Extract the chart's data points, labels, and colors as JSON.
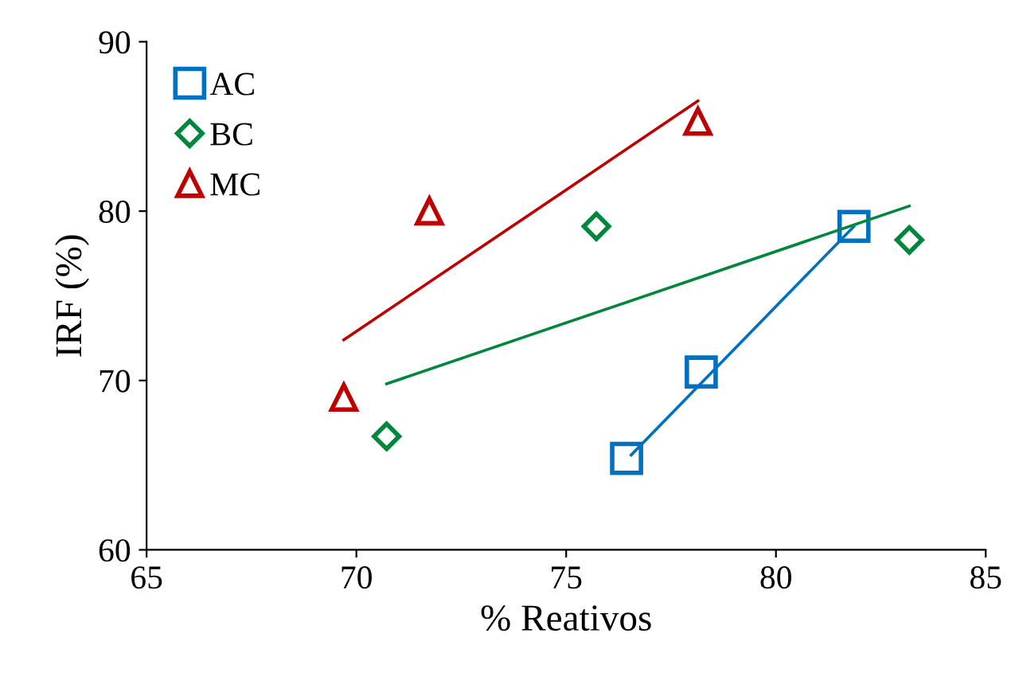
{
  "chart_data": {
    "type": "scatter",
    "xlabel": "% Reativos",
    "ylabel": "IRF (%)",
    "xlim": [
      65,
      85
    ],
    "ylim": [
      60,
      90
    ],
    "xticks": [
      65,
      70,
      75,
      80,
      85
    ],
    "yticks": [
      60,
      70,
      80,
      90
    ],
    "grid": false,
    "legend": "top left",
    "series": [
      {
        "name": "AC",
        "color": "#0070c0",
        "marker": "square",
        "x": [
          76.44,
          78.22,
          81.86
        ],
        "values": [
          65.4,
          70.5,
          79.1
        ]
      },
      {
        "name": "BC",
        "color": "#00873c",
        "marker": "diamond",
        "x": [
          70.72,
          75.72,
          83.18
        ],
        "values": [
          66.7,
          79.1,
          78.3
        ]
      },
      {
        "name": "MC",
        "color": "#c00000",
        "marker": "triangle",
        "x": [
          69.7,
          71.74,
          78.14
        ],
        "values": [
          69.0,
          80.0,
          85.3
        ]
      },
      {
        "type": "line",
        "color": "#0070c0",
        "marker": "none",
        "x": [
          76.55,
          81.86
        ],
        "values": [
          65.6,
          79.1
        ]
      },
      {
        "type": "line",
        "color": "#00873c",
        "marker": "none",
        "x": [
          70.72,
          83.18
        ],
        "values": [
          69.8,
          80.3
        ]
      },
      {
        "type": "line",
        "color": "#c00000",
        "marker": "none",
        "x": [
          69.7,
          78.14
        ],
        "values": [
          72.4,
          86.5
        ]
      }
    ]
  }
}
